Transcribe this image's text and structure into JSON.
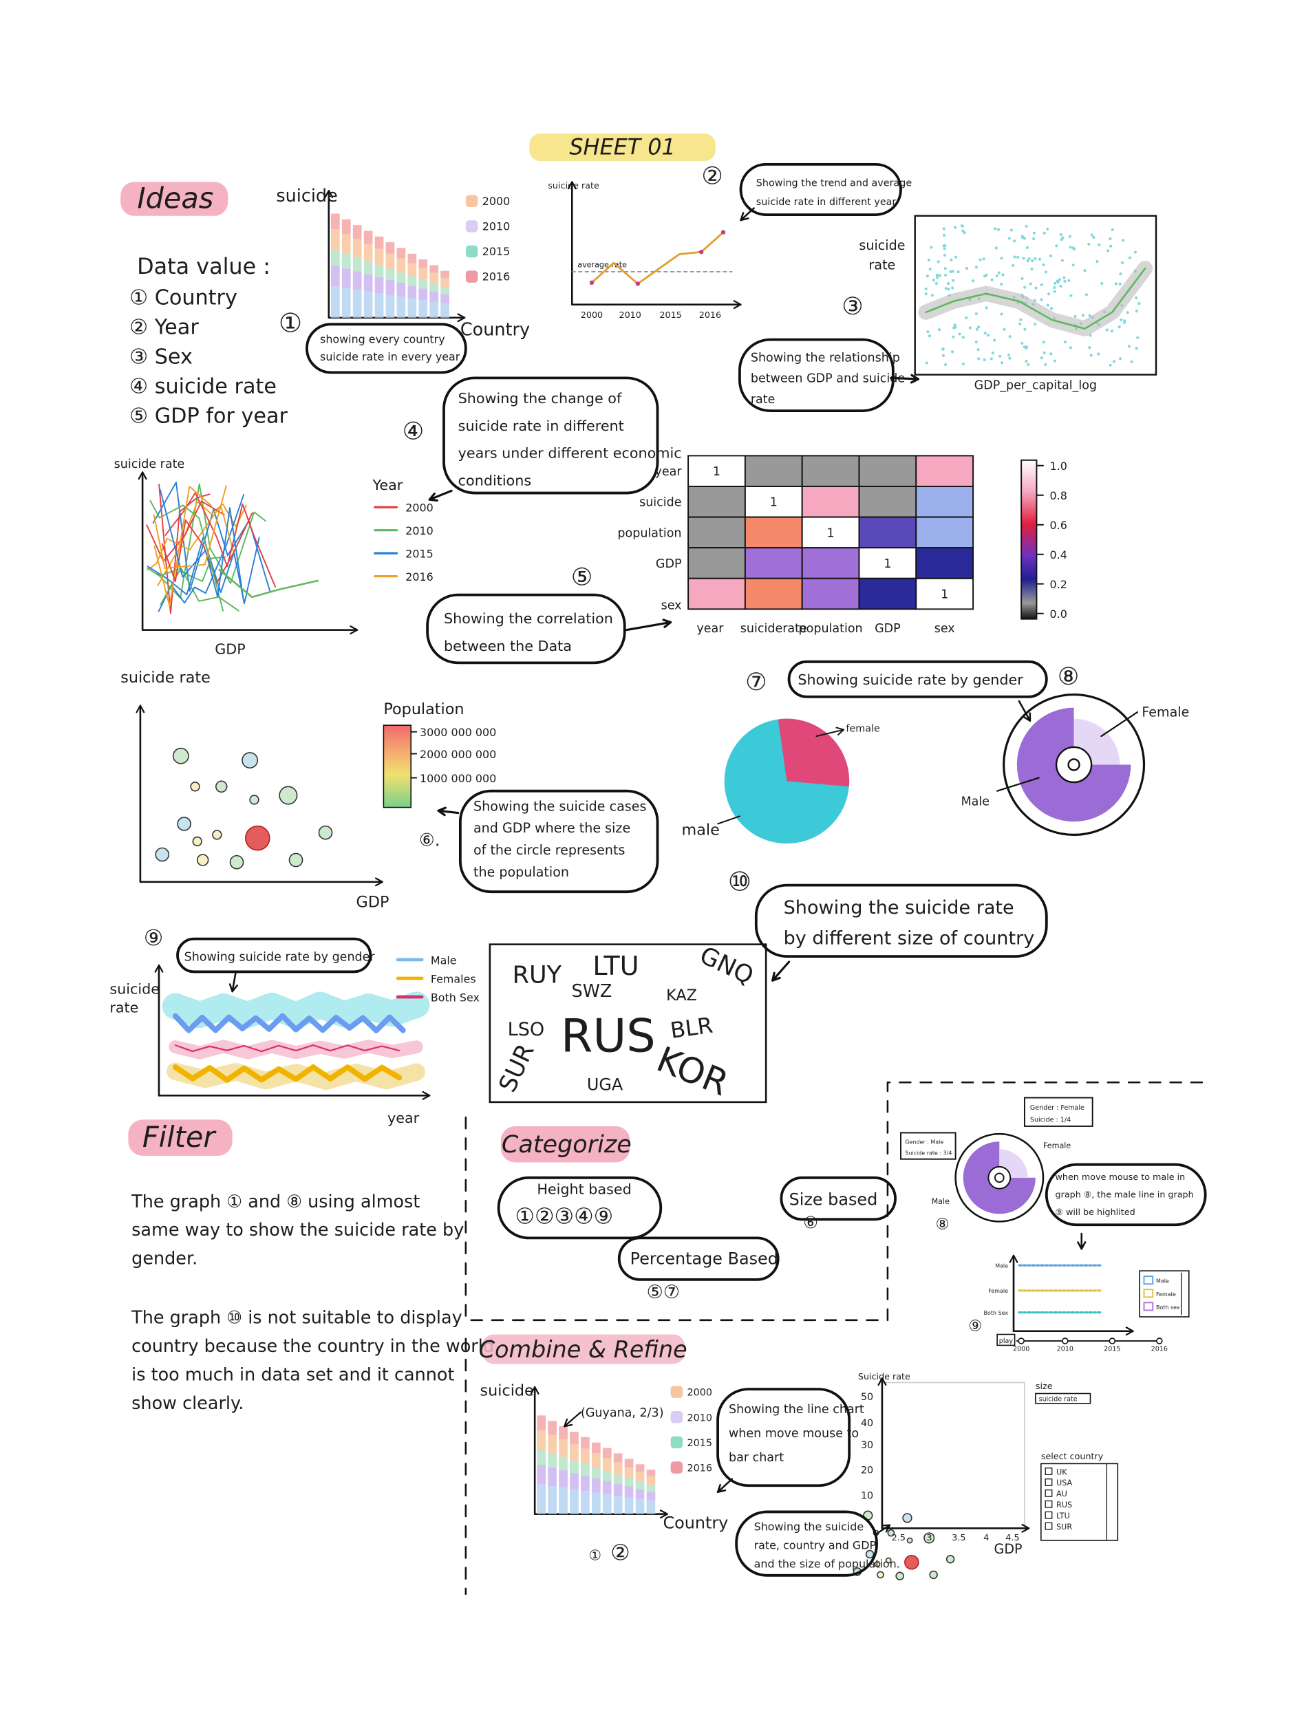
{
  "header": {
    "title": "SHEET 01"
  },
  "ideas": {
    "title": "Ideas",
    "data_value_title": "Data value :",
    "data_values": [
      "① Country",
      "② Year",
      "③ Sex",
      "④ suicide rate",
      "⑤ GDP for year"
    ]
  },
  "graph1": {
    "number": "①",
    "y_label": "suicide",
    "x_label": "Country",
    "legend": [
      "2000",
      "2010",
      "2015",
      "2016"
    ],
    "note": [
      "showing every country",
      "suicide rate in every year"
    ]
  },
  "graph2": {
    "number": "②",
    "y_label": "suicide rate",
    "annotation": "average rate",
    "x_ticks": [
      "2000",
      "2010",
      "2015",
      "2016"
    ],
    "note": [
      "Showing the trend and average",
      "suicide rate in different year"
    ]
  },
  "graph3": {
    "number": "③",
    "y_label": [
      "suicide",
      "rate"
    ],
    "x_label": "GDP_per_capital_log",
    "note": [
      "Showing the relationship",
      "between GDP and suicide",
      "rate"
    ]
  },
  "graph4": {
    "number": "④",
    "y_label": "suicide rate",
    "x_label": "GDP",
    "legend_title": "Year",
    "legend": [
      "2000",
      "2010",
      "2015",
      "2016"
    ],
    "note": [
      "Showing the change of",
      "suicide rate in different",
      "years under different economic",
      "conditions"
    ]
  },
  "graph5": {
    "number": "⑤",
    "row_labels": [
      "year",
      "suicide",
      "population",
      "GDP",
      "sex"
    ],
    "column_labels": [
      "year",
      "suiciderate",
      "population",
      "GDP",
      "sex"
    ],
    "diagonal": [
      "1",
      "1",
      "1",
      "1",
      "1"
    ],
    "colorbar_ticks": [
      "1.0",
      "0.8",
      "0.6",
      "0.4",
      "0.2",
      "0.0"
    ],
    "note": [
      "Showing the correlation",
      "between the Data"
    ]
  },
  "graph6": {
    "number": "⑥.",
    "y_label": "suicide rate",
    "x_label": "GDP",
    "legend_title": "Population",
    "legend": [
      "3000 000 000",
      "2000 000 000",
      "1000 000 000"
    ],
    "note": [
      "Showing the suicide cases",
      "and GDP where the size",
      "of the circle represents",
      "the population"
    ]
  },
  "graph7": {
    "number": "⑦",
    "note": "Showing suicide rate by gender",
    "labels": [
      "female",
      "male"
    ]
  },
  "graph8": {
    "number": "⑧",
    "labels": [
      "Female",
      "Male"
    ]
  },
  "graph9": {
    "number": "⑨",
    "y_label": [
      "suicide",
      "rate"
    ],
    "x_label": "year",
    "note": "Showing suicide rate by gender",
    "legend": [
      "Male",
      "Females",
      "Both Sex"
    ]
  },
  "graph10": {
    "number": "⑩",
    "note": [
      "Showing the suicide rate",
      "by different size of country"
    ],
    "countries": [
      "RUY",
      "LTU",
      "GNQ",
      "SWZ",
      "KAZ",
      "LSO",
      "RUS",
      "BLR",
      "SUR",
      "UGA",
      "KOR"
    ]
  },
  "filter": {
    "title": "Filter",
    "paragraphs": [
      [
        "The graph ① and ⑧ using almost",
        "same way to show the suicide rate by",
        "gender."
      ],
      [
        "The graph ⑩ is not suitable to display",
        "country because the country in the world",
        "is too much in data set and it cannot",
        "show clearly."
      ]
    ]
  },
  "categorize": {
    "title": "Categorize",
    "groups": [
      {
        "label": "Height based",
        "items": "①②③④⑨"
      },
      {
        "label": "Size based",
        "items": "⑥"
      },
      {
        "label": "Percentage Based",
        "items": "⑤⑦"
      }
    ]
  },
  "prototype": {
    "female_tooltip": [
      "Gender : Female",
      "Suicide : 1/4"
    ],
    "male_tooltip": [
      "Gender : Male",
      "Suicide rate : 3/4"
    ],
    "ring_labels": [
      "Female",
      "Male"
    ],
    "ring_number": "⑧",
    "note": [
      "when move mouse to male in",
      "graph ⑧, the male line in graph",
      "⑨ will be highlited"
    ],
    "line_labels": [
      "Male",
      "Female",
      "Both Sex"
    ],
    "legend": [
      "Male",
      "Female",
      "Both sex"
    ],
    "line_number": "⑨",
    "play": "play",
    "x_ticks": [
      "2000",
      "2010",
      "2015",
      "2016"
    ]
  },
  "combine": {
    "title": "Combine & Refine",
    "y_label": "suicide",
    "x_label": "Country",
    "tooltip": "(Guyana, 2/3)",
    "legend": [
      "2000",
      "2010",
      "2015",
      "2016"
    ],
    "note": [
      "Showing the line chart",
      "when move mouse to",
      "bar chart"
    ],
    "numbers": [
      "①",
      "②"
    ],
    "bubble": {
      "y_label": "Suicide rate",
      "y_ticks": [
        "50",
        "40",
        "30",
        "20",
        "10"
      ],
      "x_ticks": [
        "2.5",
        "3",
        "3.5",
        "4",
        "4.5"
      ],
      "x_label": "GDP",
      "size_label": "size",
      "size_option": "suicide rate",
      "select_label": "select country",
      "countries": [
        "UK",
        "USA",
        "AU",
        "RUS",
        "LTU",
        "SUR"
      ],
      "note": [
        "Showing the suicide",
        "rate, country and GDP",
        "and the size of population."
      ]
    }
  }
}
